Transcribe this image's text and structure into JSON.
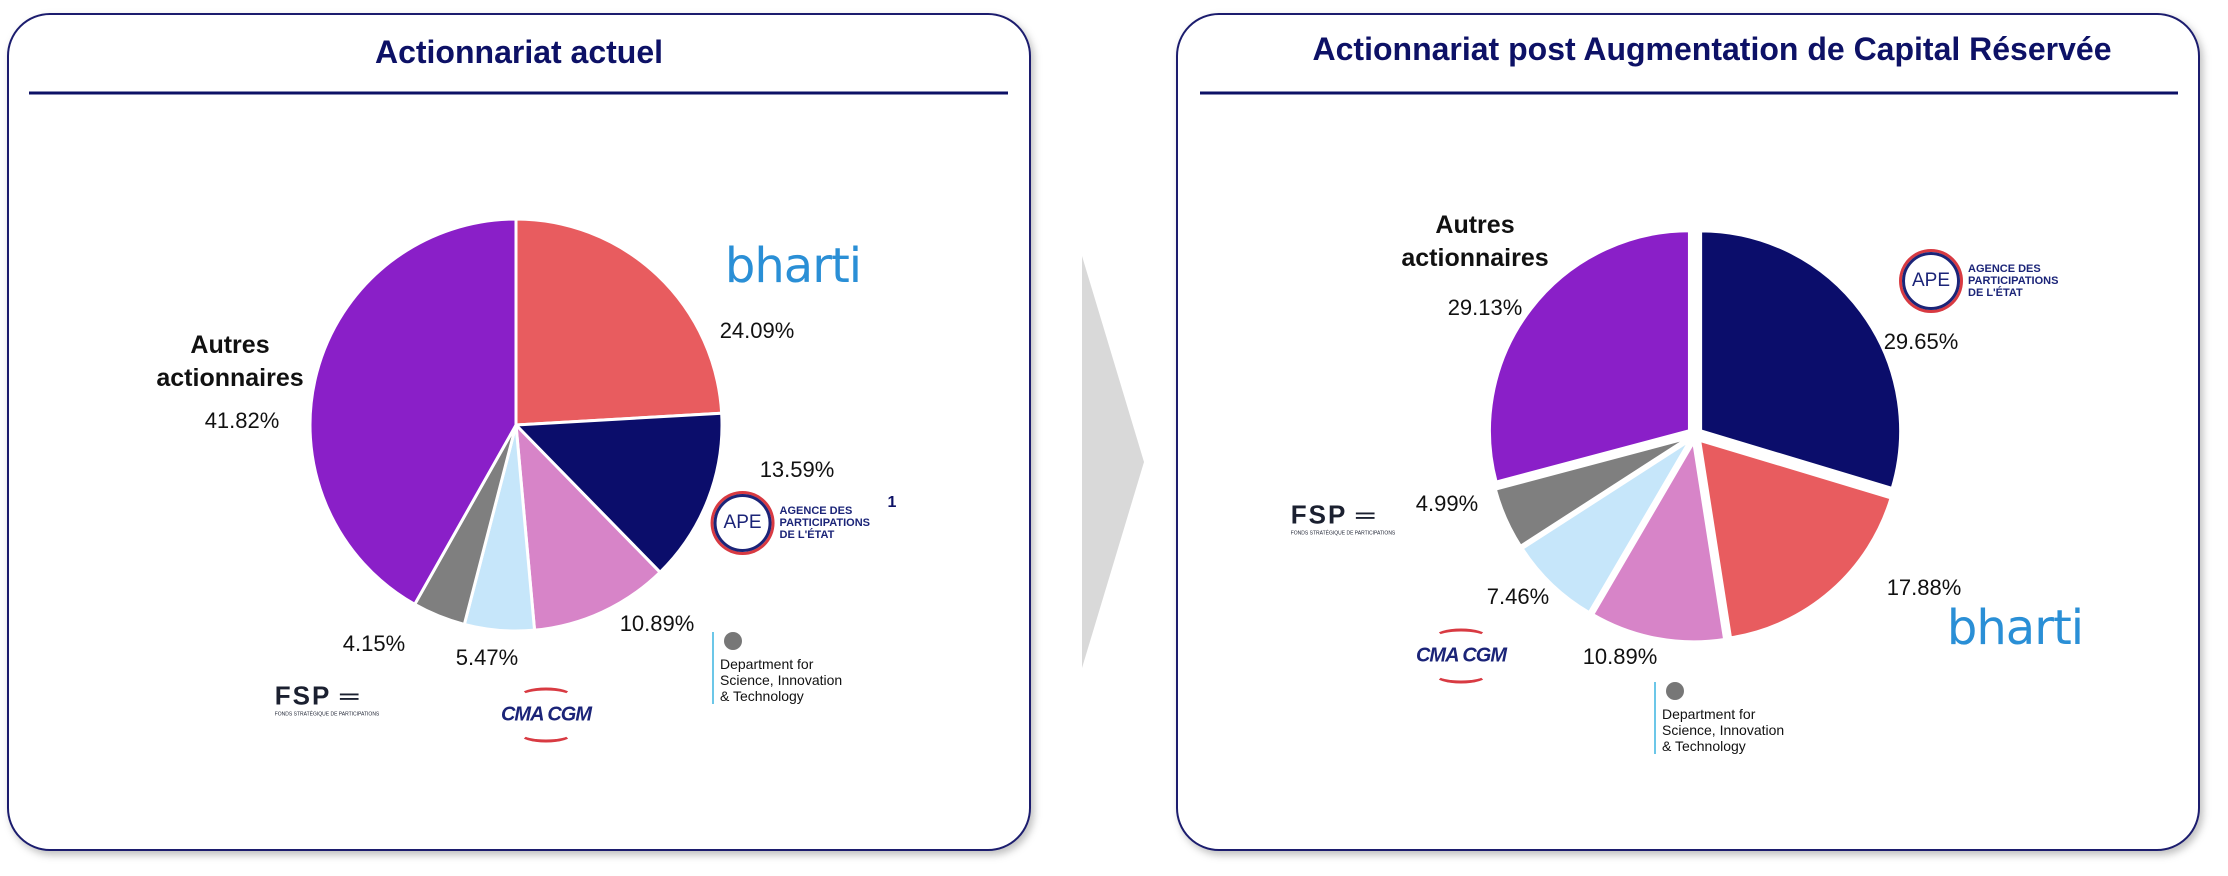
{
  "chart_data": [
    {
      "type": "pie",
      "title": "Actionnariat actuel",
      "categories": [
        "bharti",
        "APE",
        "Department for Science, Innovation & Technology",
        "CMA CGM",
        "FSP",
        "Autres actionnaires"
      ],
      "values": [
        24.09,
        13.59,
        10.89,
        5.47,
        4.15,
        41.82
      ],
      "value_labels": [
        "24.09%",
        "13.59%",
        "10.89%",
        "5.47%",
        "4.15%",
        "41.82%"
      ],
      "colors": [
        "#e85c5f",
        "#0b0d6b",
        "#d784c8",
        "#c6e6fa",
        "#7f7f7f",
        "#8a1fc8"
      ],
      "footnote": "1",
      "exploded": false
    },
    {
      "type": "pie",
      "title": "Actionnariat post Augmentation de Capital Réservée",
      "categories": [
        "APE",
        "bharti",
        "Department for Science, Innovation & Technology",
        "CMA CGM",
        "FSP",
        "Autres actionnaires"
      ],
      "values": [
        29.65,
        17.88,
        10.89,
        7.46,
        4.99,
        29.13
      ],
      "value_labels": [
        "29.65%",
        "17.88%",
        "10.89%",
        "7.46%",
        "4.99%",
        "29.13%"
      ],
      "colors": [
        "#0b0d6b",
        "#e85c5f",
        "#d784c8",
        "#c6e6fa",
        "#7f7f7f",
        "#8a1fc8"
      ],
      "exploded": true
    }
  ],
  "logo_texts": {
    "ape": "AGENCE DES PARTICIPATIONS DE L'ÉTAT",
    "fsp": "FONDS STRATÉGIQUE DE PARTICIPATIONS"
  }
}
